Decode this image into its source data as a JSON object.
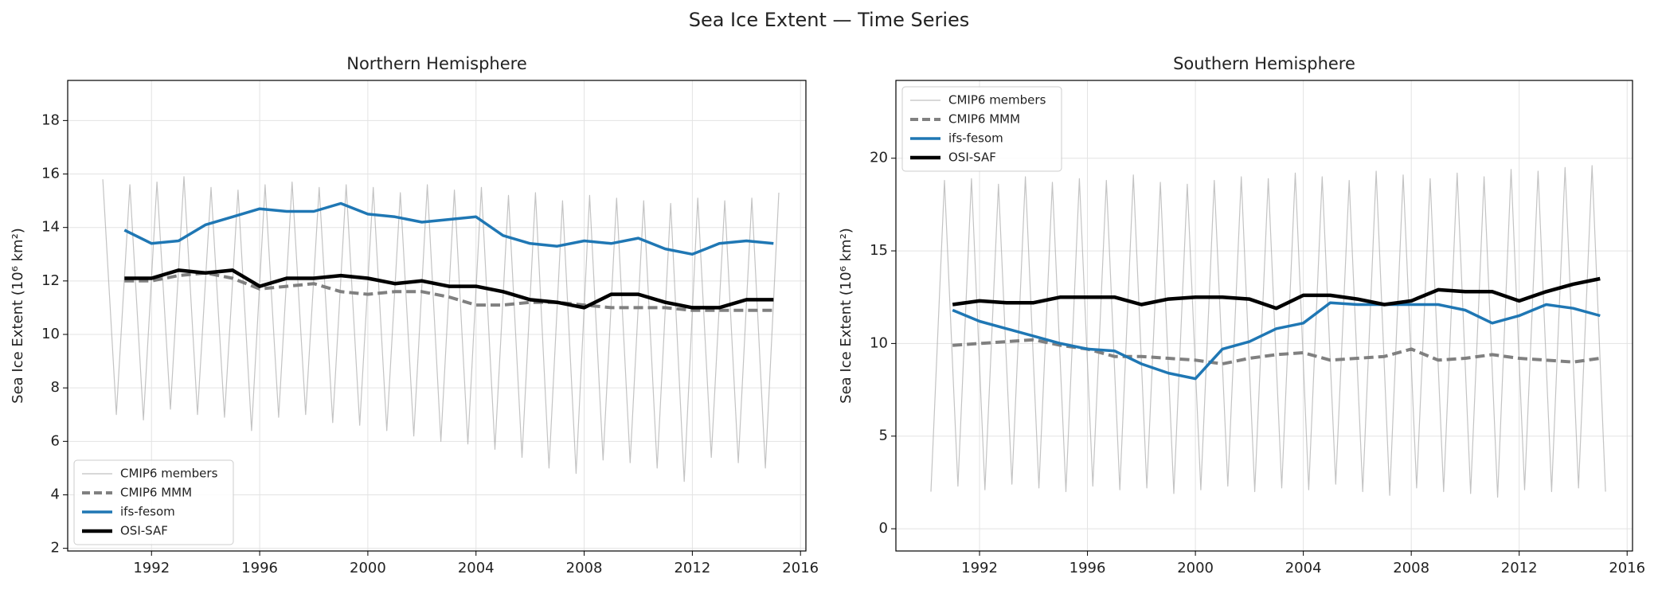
{
  "title": "Sea Ice Extent — Time Series",
  "chart_data": [
    {
      "type": "line",
      "title": "Northern Hemisphere",
      "ylabel": "Sea Ice Extent (10⁶ km²)",
      "x": [
        1991,
        1992,
        1993,
        1994,
        1995,
        1996,
        1997,
        1998,
        1999,
        2000,
        2001,
        2002,
        2003,
        2004,
        2005,
        2006,
        2007,
        2008,
        2009,
        2010,
        2011,
        2012,
        2013,
        2014,
        2015
      ],
      "xlim": [
        1988.9,
        2016.2
      ],
      "xticks": [
        1992,
        1996,
        2000,
        2004,
        2008,
        2012,
        2016
      ],
      "ylim": [
        1.9,
        19.5
      ],
      "yticks": [
        2,
        4,
        6,
        8,
        10,
        12,
        14,
        16,
        18
      ],
      "grid": true,
      "legend": "lower left",
      "series": [
        {
          "name": "CMIP6 members",
          "color": "#a9a9a9",
          "linewidth": 1.2,
          "linestyle": "solid",
          "x": [
            1990.2,
            1990.7,
            1991.2,
            1991.7,
            1992.2,
            1992.7,
            1993.2,
            1993.7,
            1994.2,
            1994.7,
            1995.2,
            1995.7,
            1996.2,
            1996.7,
            1997.2,
            1997.7,
            1998.2,
            1998.7,
            1999.2,
            1999.7,
            2000.2,
            2000.7,
            2001.2,
            2001.7,
            2002.2,
            2002.7,
            2003.2,
            2003.7,
            2004.2,
            2004.7,
            2005.2,
            2005.7,
            2006.2,
            2006.7,
            2007.2,
            2007.7,
            2008.2,
            2008.7,
            2009.2,
            2009.7,
            2010.2,
            2010.7,
            2011.2,
            2011.7,
            2012.2,
            2012.7,
            2013.2,
            2013.7,
            2014.2,
            2014.7,
            2015.2
          ],
          "values": [
            15.8,
            7.0,
            15.6,
            6.8,
            15.7,
            7.2,
            15.9,
            7.0,
            15.5,
            6.9,
            15.4,
            6.4,
            15.6,
            6.9,
            15.7,
            7.0,
            15.5,
            6.7,
            15.6,
            6.6,
            15.5,
            6.4,
            15.3,
            6.2,
            15.6,
            6.0,
            15.4,
            5.9,
            15.5,
            5.7,
            15.2,
            5.4,
            15.3,
            5.0,
            15.0,
            4.8,
            15.2,
            5.3,
            15.1,
            5.2,
            15.0,
            5.0,
            14.9,
            4.5,
            15.1,
            5.4,
            15.0,
            5.2,
            15.1,
            5.0,
            15.3
          ]
        },
        {
          "name": "CMIP6 MMM",
          "color": "#808080",
          "linewidth": 4,
          "linestyle": "dashed",
          "values": [
            12.0,
            12.0,
            12.2,
            12.3,
            12.1,
            11.7,
            11.8,
            11.9,
            11.6,
            11.5,
            11.6,
            11.6,
            11.4,
            11.1,
            11.1,
            11.2,
            11.2,
            11.1,
            11.0,
            11.0,
            11.0,
            10.9,
            10.9,
            10.9,
            10.9
          ]
        },
        {
          "name": "ifs-fesom",
          "color": "#1f77b4",
          "linewidth": 3.5,
          "linestyle": "solid",
          "values": [
            13.9,
            13.4,
            13.5,
            14.1,
            14.4,
            14.7,
            14.6,
            14.6,
            14.9,
            14.5,
            14.4,
            14.2,
            14.3,
            14.4,
            13.7,
            13.4,
            13.3,
            13.5,
            13.4,
            13.6,
            13.2,
            13.0,
            13.4,
            13.5,
            13.4
          ]
        },
        {
          "name": "OSI-SAF",
          "color": "#000000",
          "linewidth": 4.5,
          "linestyle": "solid",
          "values": [
            12.1,
            12.1,
            12.4,
            12.3,
            12.4,
            11.8,
            12.1,
            12.1,
            12.2,
            12.1,
            11.9,
            12.0,
            11.8,
            11.8,
            11.6,
            11.3,
            11.2,
            11.0,
            11.5,
            11.5,
            11.2,
            11.0,
            11.0,
            11.3,
            11.3
          ]
        }
      ]
    },
    {
      "type": "line",
      "title": "Southern Hemisphere",
      "ylabel": "Sea Ice Extent (10⁶ km²)",
      "x": [
        1991,
        1992,
        1993,
        1994,
        1995,
        1996,
        1997,
        1998,
        1999,
        2000,
        2001,
        2002,
        2003,
        2004,
        2005,
        2006,
        2007,
        2008,
        2009,
        2010,
        2011,
        2012,
        2013,
        2014,
        2015
      ],
      "xlim": [
        1988.9,
        2016.2
      ],
      "xticks": [
        1992,
        1996,
        2000,
        2004,
        2008,
        2012,
        2016
      ],
      "ylim": [
        -1.2,
        24.2
      ],
      "yticks": [
        0,
        5,
        10,
        15,
        20
      ],
      "grid": true,
      "legend": "upper left",
      "series": [
        {
          "name": "CMIP6 members",
          "color": "#a9a9a9",
          "linewidth": 1.2,
          "linestyle": "solid",
          "x": [
            1990.2,
            1990.7,
            1991.2,
            1991.7,
            1992.2,
            1992.7,
            1993.2,
            1993.7,
            1994.2,
            1994.7,
            1995.2,
            1995.7,
            1996.2,
            1996.7,
            1997.2,
            1997.7,
            1998.2,
            1998.7,
            1999.2,
            1999.7,
            2000.2,
            2000.7,
            2001.2,
            2001.7,
            2002.2,
            2002.7,
            2003.2,
            2003.7,
            2004.2,
            2004.7,
            2005.2,
            2005.7,
            2006.2,
            2006.7,
            2007.2,
            2007.7,
            2008.2,
            2008.7,
            2009.2,
            2009.7,
            2010.2,
            2010.7,
            2011.2,
            2011.7,
            2012.2,
            2012.7,
            2013.2,
            2013.7,
            2014.2,
            2014.7,
            2015.2
          ],
          "values": [
            2.0,
            18.8,
            2.3,
            18.9,
            2.1,
            18.6,
            2.4,
            19.0,
            2.2,
            18.7,
            2.0,
            18.9,
            2.3,
            18.8,
            2.1,
            19.1,
            2.2,
            18.7,
            1.9,
            18.6,
            2.1,
            18.8,
            2.3,
            19.0,
            2.0,
            18.9,
            2.2,
            19.2,
            2.1,
            19.0,
            2.4,
            18.8,
            2.0,
            19.3,
            1.8,
            19.1,
            2.2,
            18.9,
            2.0,
            19.2,
            1.9,
            19.0,
            1.7,
            19.4,
            2.1,
            19.3,
            2.0,
            19.5,
            2.2,
            19.6,
            2.0
          ]
        },
        {
          "name": "CMIP6 MMM",
          "color": "#808080",
          "linewidth": 4,
          "linestyle": "dashed",
          "values": [
            9.9,
            10.0,
            10.1,
            10.2,
            9.9,
            9.7,
            9.3,
            9.3,
            9.2,
            9.1,
            8.9,
            9.2,
            9.4,
            9.5,
            9.1,
            9.2,
            9.3,
            9.7,
            9.1,
            9.2,
            9.4,
            9.2,
            9.1,
            9.0,
            9.2
          ]
        },
        {
          "name": "ifs-fesom",
          "color": "#1f77b4",
          "linewidth": 3.5,
          "linestyle": "solid",
          "values": [
            11.8,
            11.2,
            10.8,
            10.4,
            10.0,
            9.7,
            9.6,
            8.9,
            8.4,
            8.1,
            9.7,
            10.1,
            10.8,
            11.1,
            12.2,
            12.1,
            12.1,
            12.1,
            12.1,
            11.8,
            11.1,
            11.5,
            12.1,
            11.9,
            11.5
          ]
        },
        {
          "name": "OSI-SAF",
          "color": "#000000",
          "linewidth": 4.5,
          "linestyle": "solid",
          "values": [
            12.1,
            12.3,
            12.2,
            12.2,
            12.5,
            12.5,
            12.5,
            12.1,
            12.4,
            12.5,
            12.5,
            12.4,
            11.9,
            12.6,
            12.6,
            12.4,
            12.1,
            12.3,
            12.9,
            12.8,
            12.8,
            12.3,
            12.8,
            13.2,
            13.5
          ]
        }
      ]
    }
  ]
}
